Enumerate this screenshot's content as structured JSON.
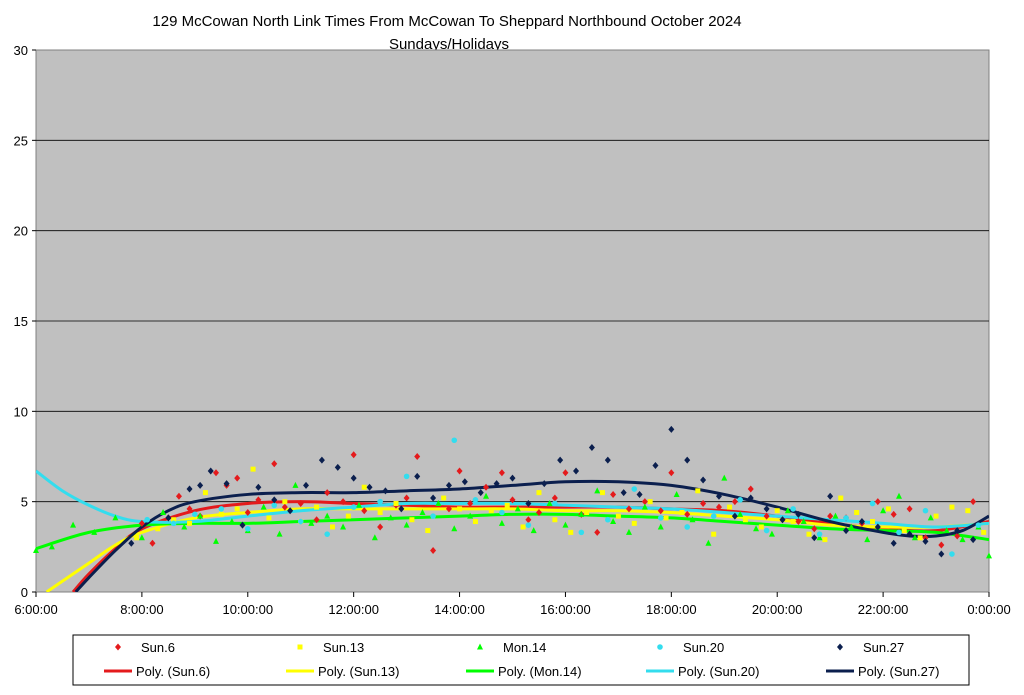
{
  "chart_data": {
    "type": "scatter",
    "title": "129 McCowan North Link Times From McCowan To Sheppard Northbound October 2024",
    "subtitle": "Sundays/Holidays",
    "xlabel": "",
    "ylabel": "",
    "xlim": [
      "6:00:00",
      "0:00:00"
    ],
    "ylim": [
      0,
      30
    ],
    "x_ticks": [
      "6:00:00",
      "8:00:00",
      "10:00:00",
      "12:00:00",
      "14:00:00",
      "16:00:00",
      "18:00:00",
      "20:00:00",
      "22:00:00",
      "0:00:00"
    ],
    "y_ticks": [
      0,
      5,
      10,
      15,
      20,
      25,
      30
    ],
    "grid": "horizontal",
    "plot_background": "#c0c0c0",
    "legend_position": "bottom",
    "series": [
      {
        "name": "Sun.6",
        "marker": "diamond",
        "color": "#e41a1c",
        "x": [
          8.0,
          8.2,
          8.5,
          8.7,
          8.9,
          9.1,
          9.4,
          9.6,
          9.8,
          10.0,
          10.2,
          10.5,
          10.7,
          11.0,
          11.3,
          11.5,
          11.8,
          12.0,
          12.2,
          12.5,
          12.8,
          13.0,
          13.2,
          13.5,
          13.8,
          14.0,
          14.2,
          14.5,
          14.8,
          15.0,
          15.3,
          15.5,
          15.8,
          16.0,
          16.3,
          16.6,
          16.9,
          17.2,
          17.5,
          17.8,
          18.0,
          18.3,
          18.6,
          18.9,
          19.2,
          19.5,
          19.8,
          20.1,
          20.4,
          20.7,
          21.0,
          21.3,
          21.6,
          21.9,
          22.2,
          22.5,
          22.8,
          23.1,
          23.4,
          23.7
        ],
        "y": [
          3.8,
          2.7,
          4.1,
          5.3,
          4.6,
          4.2,
          6.6,
          5.9,
          6.3,
          4.4,
          5.1,
          7.1,
          4.7,
          4.9,
          4.0,
          5.5,
          5.0,
          7.6,
          4.5,
          3.6,
          4.8,
          5.2,
          7.5,
          2.3,
          4.6,
          6.7,
          4.9,
          5.8,
          6.6,
          5.1,
          4.0,
          4.4,
          5.2,
          6.6,
          4.3,
          3.3,
          5.4,
          4.6,
          5.0,
          4.5,
          6.6,
          4.3,
          4.9,
          4.7,
          5.0,
          5.7,
          4.2,
          4.0,
          3.9,
          3.5,
          4.2,
          4.1,
          3.8,
          5.0,
          4.3,
          4.6,
          3.0,
          2.6,
          3.1,
          5.0
        ]
      },
      {
        "name": "Sun.13",
        "marker": "square",
        "color": "#ffff00",
        "x": [
          7.9,
          8.3,
          8.6,
          8.9,
          9.2,
          9.5,
          9.8,
          10.1,
          10.4,
          10.7,
          11.0,
          11.3,
          11.6,
          11.9,
          12.2,
          12.5,
          12.8,
          13.1,
          13.4,
          13.7,
          14.0,
          14.3,
          14.6,
          14.9,
          15.2,
          15.5,
          15.8,
          16.1,
          16.4,
          16.7,
          17.0,
          17.3,
          17.6,
          17.9,
          18.2,
          18.5,
          18.8,
          19.1,
          19.4,
          19.7,
          20.0,
          20.3,
          20.6,
          20.9,
          21.2,
          21.5,
          21.8,
          22.1,
          22.4,
          22.7,
          23.0,
          23.3,
          23.6,
          23.9
        ],
        "y": [
          3.0,
          3.5,
          4.0,
          3.8,
          5.5,
          4.3,
          4.6,
          6.8,
          4.1,
          5.0,
          3.9,
          4.7,
          3.6,
          4.2,
          5.8,
          4.4,
          4.9,
          4.0,
          3.4,
          5.2,
          4.6,
          3.9,
          4.5,
          4.8,
          3.6,
          5.5,
          4.0,
          3.3,
          4.4,
          5.5,
          4.2,
          3.8,
          5.0,
          4.1,
          4.4,
          5.6,
          3.2,
          4.7,
          4.0,
          3.6,
          4.5,
          3.9,
          3.2,
          2.9,
          5.2,
          4.4,
          3.9,
          4.6,
          3.4,
          3.0,
          4.2,
          4.7,
          4.5,
          3.3
        ]
      },
      {
        "name": "Mon.14",
        "marker": "triangle",
        "color": "#00ff00",
        "x": [
          6.0,
          6.3,
          6.7,
          7.1,
          7.5,
          8.0,
          8.4,
          8.8,
          9.1,
          9.4,
          9.7,
          10.0,
          10.3,
          10.6,
          10.9,
          11.2,
          11.5,
          11.8,
          12.1,
          12.4,
          12.7,
          13.0,
          13.3,
          13.6,
          13.9,
          14.2,
          14.5,
          14.8,
          15.1,
          15.4,
          15.7,
          16.0,
          16.3,
          16.6,
          16.9,
          17.2,
          17.5,
          17.8,
          18.1,
          18.4,
          18.7,
          19.0,
          19.3,
          19.6,
          19.9,
          20.2,
          20.5,
          20.8,
          21.1,
          21.4,
          21.7,
          22.0,
          22.3,
          22.6,
          22.9,
          23.2,
          23.5,
          23.8,
          24.0
        ],
        "y": [
          2.3,
          2.5,
          3.7,
          3.3,
          4.1,
          3.0,
          4.4,
          3.6,
          4.2,
          2.8,
          3.9,
          3.4,
          4.7,
          3.2,
          5.9,
          3.8,
          4.2,
          3.6,
          4.8,
          3.0,
          4.1,
          3.7,
          4.4,
          4.9,
          3.5,
          4.2,
          5.3,
          3.8,
          4.6,
          3.4,
          4.9,
          3.7,
          4.3,
          5.6,
          3.9,
          3.3,
          4.7,
          3.6,
          5.4,
          4.0,
          2.7,
          6.3,
          4.3,
          3.5,
          3.2,
          4.5,
          3.9,
          3.0,
          4.2,
          3.6,
          2.9,
          4.5,
          5.3,
          3.0,
          4.1,
          3.4,
          2.9,
          3.6,
          2.0
        ]
      },
      {
        "name": "Sun.20",
        "marker": "circle",
        "color": "#33ddee",
        "x": [
          8.1,
          8.6,
          9.0,
          9.5,
          10.0,
          10.5,
          11.0,
          11.5,
          12.0,
          12.5,
          13.0,
          13.5,
          13.9,
          14.3,
          14.8,
          15.3,
          15.8,
          16.3,
          16.8,
          17.3,
          17.8,
          18.3,
          18.8,
          19.3,
          19.8,
          20.3,
          20.8,
          21.3,
          21.8,
          22.3,
          22.8,
          23.3,
          23.8
        ],
        "y": [
          4.0,
          3.8,
          4.3,
          4.6,
          3.5,
          4.8,
          3.9,
          3.2,
          4.7,
          5.0,
          6.4,
          4.2,
          8.4,
          5.1,
          4.4,
          3.7,
          4.9,
          3.3,
          4.0,
          5.7,
          4.1,
          3.6,
          4.2,
          5.1,
          3.4,
          4.6,
          3.2,
          4.1,
          4.9,
          3.3,
          4.5,
          2.1,
          3.7
        ]
      },
      {
        "name": "Sun.27",
        "marker": "diamond",
        "color": "#0b1f4e",
        "x": [
          7.8,
          8.5,
          8.9,
          9.1,
          9.3,
          9.6,
          9.9,
          10.2,
          10.5,
          10.8,
          11.1,
          11.4,
          11.7,
          12.0,
          12.3,
          12.6,
          12.9,
          13.2,
          13.5,
          13.8,
          14.1,
          14.4,
          14.7,
          15.0,
          15.3,
          15.6,
          15.9,
          16.2,
          16.5,
          16.8,
          17.1,
          17.4,
          17.7,
          18.0,
          18.3,
          18.6,
          18.9,
          19.2,
          19.5,
          19.8,
          20.1,
          20.4,
          20.7,
          21.0,
          21.3,
          21.6,
          21.9,
          22.2,
          22.5,
          22.8,
          23.1,
          23.4,
          23.7
        ],
        "y": [
          2.7,
          4.1,
          5.7,
          5.9,
          6.7,
          6.0,
          3.7,
          5.8,
          5.1,
          4.5,
          5.9,
          7.3,
          6.9,
          6.3,
          5.8,
          5.6,
          4.6,
          6.4,
          5.2,
          5.9,
          6.1,
          5.5,
          6.0,
          6.3,
          4.9,
          6.0,
          7.3,
          6.7,
          8.0,
          7.3,
          5.5,
          5.4,
          7.0,
          9.0,
          7.3,
          6.2,
          5.3,
          4.2,
          5.2,
          4.6,
          4.0,
          4.3,
          3.0,
          5.3,
          3.4,
          3.9,
          3.6,
          2.7,
          3.2,
          2.8,
          2.1,
          3.4,
          2.9
        ]
      }
    ],
    "trendlines": [
      {
        "name": "Poly. (Sun.6)",
        "color": "#e41a1c",
        "x": [
          6.7,
          7.0,
          7.5,
          8.0,
          9.0,
          10.0,
          11.0,
          12.0,
          13.0,
          14.0,
          15.0,
          16.0,
          17.0,
          18.0,
          19.0,
          20.0,
          21.0,
          22.0,
          23.0,
          24.0
        ],
        "y": [
          0.0,
          1.0,
          2.4,
          3.5,
          4.5,
          4.9,
          5.0,
          4.9,
          4.8,
          4.7,
          4.7,
          4.7,
          4.7,
          4.6,
          4.5,
          4.2,
          3.8,
          3.5,
          3.4,
          3.9
        ]
      },
      {
        "name": "Poly. (Sun.13)",
        "color": "#ffff00",
        "x": [
          6.2,
          6.5,
          7.0,
          7.5,
          8.0,
          9.0,
          10.0,
          11.0,
          12.0,
          13.0,
          14.0,
          15.0,
          16.0,
          17.0,
          18.0,
          19.0,
          20.0,
          21.0,
          22.0,
          23.0,
          24.0
        ],
        "y": [
          0.0,
          0.6,
          1.6,
          2.6,
          3.3,
          4.1,
          4.4,
          4.6,
          4.6,
          4.6,
          4.6,
          4.6,
          4.5,
          4.5,
          4.4,
          4.2,
          4.0,
          3.7,
          3.6,
          3.6,
          3.8
        ]
      },
      {
        "name": "Poly. (Mon.14)",
        "color": "#00ff00",
        "x": [
          6.0,
          7.0,
          8.0,
          9.0,
          10.0,
          11.0,
          12.0,
          13.0,
          14.0,
          15.0,
          16.0,
          17.0,
          18.0,
          19.0,
          20.0,
          21.0,
          22.0,
          23.0,
          24.0
        ],
        "y": [
          2.4,
          3.3,
          3.7,
          3.8,
          3.8,
          3.9,
          4.0,
          4.1,
          4.2,
          4.3,
          4.3,
          4.2,
          4.1,
          3.9,
          3.7,
          3.5,
          3.4,
          3.3,
          2.9
        ]
      },
      {
        "name": "Poly. (Sun.20)",
        "color": "#33ddee",
        "x": [
          6.0,
          6.5,
          7.0,
          7.5,
          8.0,
          9.0,
          10.0,
          11.0,
          12.0,
          13.0,
          14.0,
          15.0,
          16.0,
          17.0,
          18.0,
          19.0,
          20.0,
          21.0,
          22.0,
          23.0,
          24.0
        ],
        "y": [
          6.7,
          5.6,
          4.8,
          4.2,
          3.9,
          3.9,
          4.2,
          4.5,
          4.7,
          4.9,
          4.9,
          4.9,
          4.8,
          4.7,
          4.6,
          4.4,
          4.2,
          4.0,
          3.8,
          3.6,
          3.8
        ]
      },
      {
        "name": "Poly. (Sun.27)",
        "color": "#0b1f4e",
        "x": [
          6.75,
          7.0,
          7.5,
          8.0,
          8.5,
          9.0,
          10.0,
          11.0,
          12.0,
          13.0,
          14.0,
          15.0,
          16.0,
          17.0,
          18.0,
          19.0,
          20.0,
          21.0,
          22.0,
          22.5,
          23.0,
          23.5,
          24.0
        ],
        "y": [
          0.0,
          0.8,
          2.3,
          3.6,
          4.5,
          5.0,
          5.4,
          5.5,
          5.5,
          5.6,
          5.7,
          5.9,
          6.1,
          6.1,
          5.9,
          5.4,
          4.7,
          3.9,
          3.3,
          3.1,
          3.1,
          3.4,
          4.2
        ]
      }
    ]
  }
}
